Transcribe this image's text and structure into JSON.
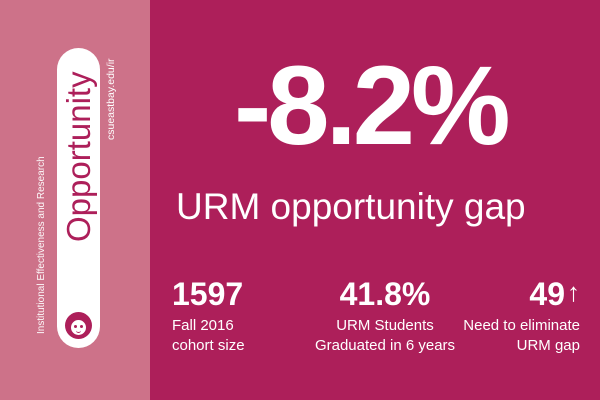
{
  "sidebar": {
    "title": "Opportunity",
    "url": "csueastbay.edu/ir",
    "department": "Institutional Effectiveness and Research",
    "icon": "face-icon"
  },
  "headline": {
    "value": "-8.2%",
    "label": "URM opportunity gap"
  },
  "stats": [
    {
      "value": "1597",
      "label_line1": "Fall 2016",
      "label_line2": "cohort size"
    },
    {
      "value": "41.8%",
      "label_line1": "URM Students",
      "label_line2": "Graduated in 6 years"
    },
    {
      "value": "49",
      "icon": "up-arrow-icon",
      "label_line1": "Need to eliminate",
      "label_line2": "URM gap"
    }
  ],
  "colors": {
    "background": "#ad1f5a",
    "sidebar": "#cd7289",
    "text": "#ffffff"
  }
}
